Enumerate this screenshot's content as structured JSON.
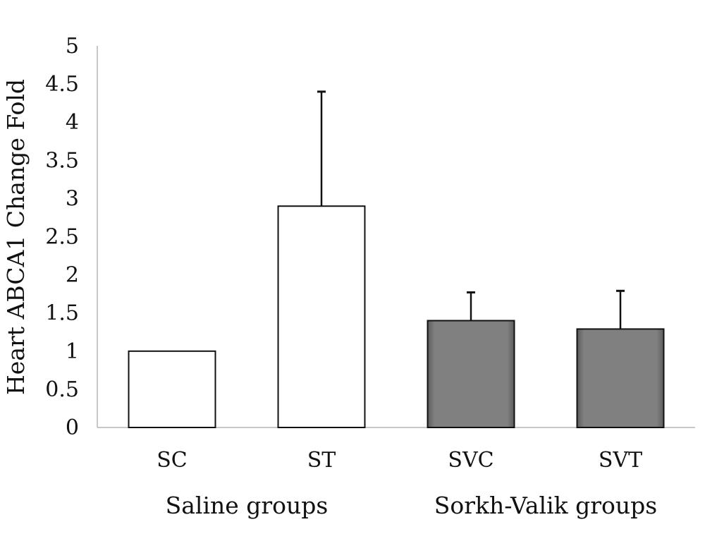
{
  "chart_data": {
    "type": "bar",
    "title": "",
    "ylabel": "Heart ABCA1 Change Fold",
    "xlabel": "",
    "ylim": [
      0,
      5
    ],
    "yticks": [
      "0",
      "0.5",
      "1",
      "1.5",
      "2",
      "2.5",
      "3",
      "3.5",
      "4",
      "4.5",
      "5"
    ],
    "ytick_values": [
      0,
      0.5,
      1,
      1.5,
      2,
      2.5,
      3,
      3.5,
      4,
      4.5,
      5
    ],
    "categories": [
      "SC",
      "ST",
      "SVC",
      "SVT"
    ],
    "values": [
      1.0,
      2.9,
      1.4,
      1.29
    ],
    "error_upper": [
      0,
      1.5,
      0.37,
      0.5
    ],
    "groups": [
      {
        "label": "Saline groups",
        "categories": [
          "SC",
          "ST"
        ]
      },
      {
        "label": "Sorkh-Valik groups",
        "categories": [
          "SVC",
          "SVT"
        ]
      }
    ],
    "grid": false,
    "legend": "none",
    "colors": {
      "saline_fill": "#ffffff",
      "sorkh_valik_fill": "#808080",
      "edge": "#111111"
    }
  }
}
